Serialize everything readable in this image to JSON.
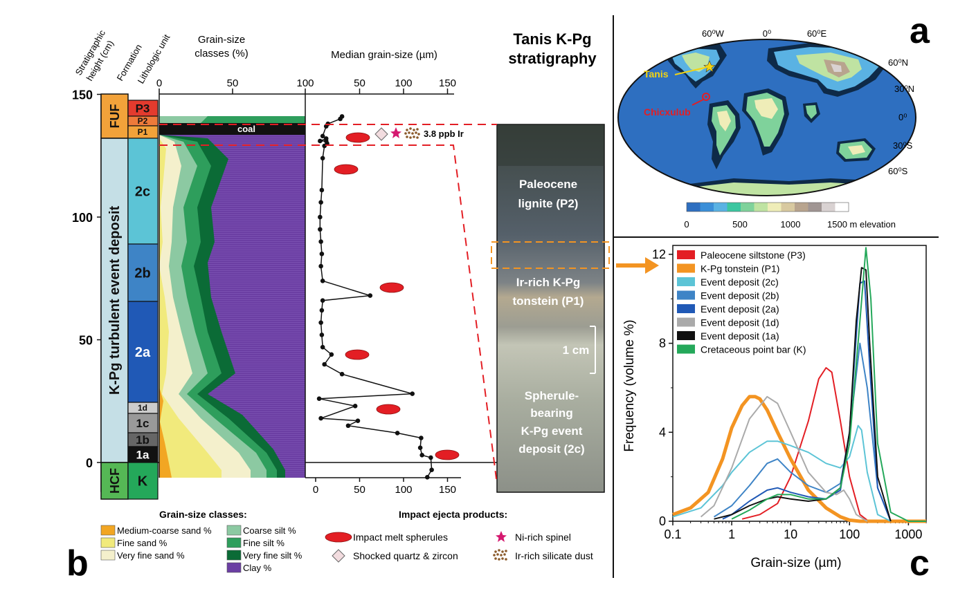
{
  "panel_letters": {
    "a": "a",
    "b": "b",
    "c": "c"
  },
  "panel_b": {
    "col_headers": {
      "height": "Stratigraphic height (cm)",
      "formation": "Formation",
      "unit": "Lithologic unit"
    },
    "grain_header": "Grain-size classes (%)",
    "median_header": "Median grain-size (µm)",
    "title_line1": "Tanis K-Pg",
    "title_line2": "stratigraphy",
    "height_ticks": [
      "150",
      "100",
      "50",
      "0"
    ],
    "grain_ticks_top": [
      "0",
      "50",
      "100"
    ],
    "median_ticks_top": [
      "50",
      "100",
      "150"
    ],
    "median_ticks_bottom": [
      "0",
      "50",
      "100",
      "150"
    ],
    "formations": [
      {
        "label": "FUF",
        "color": "#F2A23A",
        "text_color": "#111111"
      },
      {
        "label": "K-Pg turbulent event deposit",
        "color": "#C5DFE6",
        "text_color": "#111111"
      },
      {
        "label": "HCF",
        "color": "#55B855",
        "text_color": "#111111"
      }
    ],
    "units": [
      {
        "label": "P3",
        "color": "#E33B2E",
        "text_color": "#111111"
      },
      {
        "label": "P2",
        "color": "#EE7A3A",
        "text_color": "#111111"
      },
      {
        "label": "P1",
        "color": "#F2A23A",
        "text_color": "#111111"
      },
      {
        "label": "2c",
        "color": "#5CC4D6",
        "text_color": "#111111"
      },
      {
        "label": "2b",
        "color": "#3E84C6",
        "text_color": "#111111"
      },
      {
        "label": "2a",
        "color": "#2059B6",
        "text_color": "#FFFFFF"
      },
      {
        "label": "1d",
        "color": "#CCCCCC",
        "text_color": "#111111"
      },
      {
        "label": "1c",
        "color": "#999999",
        "text_color": "#111111"
      },
      {
        "label": "1b",
        "color": "#666666",
        "text_color": "#111111"
      },
      {
        "label": "1a",
        "color": "#111111",
        "text_color": "#FFFFFF"
      },
      {
        "label": "K",
        "color": "#24A85A",
        "text_color": "#111111"
      }
    ],
    "coal_label": "coal",
    "ir_label": "3.8 ppb Ir",
    "photo_labels": [
      "Paleocene",
      "lignite (P2)",
      "Ir-rich K-Pg",
      "tonstein (P1)",
      "1 cm",
      "Spherule-",
      "bearing",
      "K-Pg event",
      "deposit (2c)"
    ],
    "median_profile": {
      "height_cm": [
        141,
        140,
        138,
        137,
        133,
        132,
        131,
        131,
        130,
        129,
        124,
        111,
        106,
        100,
        95,
        90,
        85,
        80,
        74,
        68,
        66,
        62,
        57,
        52,
        47,
        44,
        40,
        36,
        28,
        26,
        23,
        18,
        17,
        15,
        12,
        10,
        6,
        3,
        2,
        -3,
        -6
      ],
      "median_um": [
        30,
        28,
        14,
        12,
        8,
        12,
        5,
        12,
        13,
        10,
        8,
        7,
        6,
        5,
        5,
        6,
        7,
        6,
        8,
        62,
        8,
        7,
        6,
        7,
        8,
        18,
        10,
        30,
        110,
        4,
        45,
        6,
        48,
        37,
        93,
        120,
        119,
        121,
        131,
        132,
        127
      ]
    },
    "legend_grain": {
      "title": "Grain-size classes:",
      "items": [
        {
          "label": "Medium-coarse sand %",
          "color": "#F2A623"
        },
        {
          "label": "Fine sand %",
          "color": "#F1EA7C"
        },
        {
          "label": "Very fine sand %",
          "color": "#F4F0CC"
        },
        {
          "label": "Coarse silt %",
          "color": "#8CC9A2"
        },
        {
          "label": "Fine silt %",
          "color": "#2E9E5C"
        },
        {
          "label": "Very fine silt %",
          "color": "#0B6B36"
        },
        {
          "label": "Clay %",
          "color": "#6B3EA3"
        }
      ]
    },
    "legend_impact": {
      "title": "Impact ejecta products:",
      "items": [
        {
          "label": "Impact melt spherules",
          "icon": "red-ellipse-icon",
          "color": "#E31E24"
        },
        {
          "label": "Ni-rich spinel",
          "icon": "star-icon",
          "color": "#D5186F"
        },
        {
          "label": "Shocked quartz & zircon",
          "icon": "diamond-icon",
          "color": "#F2DCDF"
        },
        {
          "label": "Ir-rich silicate dust",
          "icon": "dots-icon",
          "color": "#8B5A2B"
        }
      ]
    }
  },
  "panel_a": {
    "lon_labels": [
      "60⁰W",
      "0⁰",
      "60⁰E"
    ],
    "lat_labels": [
      "60⁰N",
      "30⁰N",
      "0⁰",
      "30⁰S",
      "60⁰S"
    ],
    "sites": [
      {
        "label": "Tanis",
        "color": "#F2D312",
        "icon": "star-icon"
      },
      {
        "label": "Chicxulub",
        "color": "#E31E24",
        "icon": "target-icon"
      }
    ],
    "colorbar": {
      "labels": [
        "0",
        "500",
        "1000",
        "1500 m elevation"
      ],
      "colors": [
        "#2E6FC0",
        "#3B8FD8",
        "#5AB2E3",
        "#3CC6A0",
        "#7FD29B",
        "#BFE3A2",
        "#EFEDB8",
        "#D8C9A0",
        "#B8A48E",
        "#A09593",
        "#D9D2D2",
        "#FFFFFF"
      ]
    }
  },
  "chart_data": {
    "type": "line",
    "xlabel": "Grain-size (µm)",
    "ylabel": "Frequency (volume %)",
    "x_scale": "log",
    "xlim": [
      0.1,
      2000
    ],
    "ylim": [
      0,
      12.4
    ],
    "x_ticks": [
      "0.1",
      "1",
      "10",
      "100",
      "1000"
    ],
    "y_ticks": [
      "0",
      "4",
      "8",
      "12"
    ],
    "legend_position": "top-left",
    "series": [
      {
        "name": "Paleocene siltstone (P3)",
        "color": "#E31E24",
        "width": 2,
        "x": [
          1.5,
          3,
          6,
          10,
          20,
          30,
          40,
          50,
          70,
          100,
          150,
          200,
          300
        ],
        "y": [
          0.1,
          0.3,
          0.8,
          2,
          4.5,
          6.4,
          6.9,
          6.7,
          4.5,
          2,
          0.3,
          0.05,
          0
        ]
      },
      {
        "name": "K-Pg tonstein (P1)",
        "color": "#F39422",
        "width": 5,
        "x": [
          0.1,
          0.2,
          0.4,
          0.7,
          1,
          1.5,
          2,
          2.5,
          3,
          4,
          6,
          10,
          20,
          40,
          70,
          100,
          150,
          200,
          300,
          500,
          2000
        ],
        "y": [
          0.3,
          0.6,
          1.3,
          2.8,
          4.2,
          5.2,
          5.6,
          5.6,
          5.5,
          5,
          4,
          2.8,
          1.4,
          0.6,
          0.2,
          0.05,
          0,
          0,
          0,
          0,
          0
        ]
      },
      {
        "name": "Event deposit (2c)",
        "color": "#5CC4D6",
        "width": 2,
        "x": [
          0.1,
          0.3,
          0.7,
          1,
          2,
          4,
          6,
          10,
          20,
          40,
          70,
          100,
          140,
          160,
          200,
          300,
          500
        ],
        "y": [
          0.2,
          0.6,
          1.6,
          2.2,
          3.1,
          3.6,
          3.6,
          3.4,
          3.1,
          2.6,
          2.4,
          2.9,
          4.3,
          4.1,
          2.2,
          0.3,
          0
        ]
      },
      {
        "name": "Event deposit (2b)",
        "color": "#3E84C6",
        "width": 2,
        "x": [
          0.5,
          1,
          2,
          4,
          6,
          10,
          20,
          40,
          70,
          100,
          150,
          200,
          300,
          500
        ],
        "y": [
          0.2,
          0.7,
          1.6,
          2.6,
          2.8,
          2.2,
          1.6,
          1.3,
          1.7,
          4,
          8,
          6,
          1.5,
          0
        ]
      },
      {
        "name": "Event deposit (2a)",
        "color": "#2059B6",
        "width": 2,
        "x": [
          0.7,
          1,
          2,
          4,
          6,
          10,
          20,
          40,
          70,
          100,
          150,
          180,
          220,
          300,
          500
        ],
        "y": [
          0.1,
          0.3,
          0.9,
          1.4,
          1.5,
          1.3,
          1.1,
          1,
          1.4,
          4,
          10.7,
          10.8,
          7,
          1.5,
          0
        ]
      },
      {
        "name": "Event deposit (1d)",
        "color": "#AAAAAA",
        "width": 2,
        "x": [
          0.3,
          0.5,
          1,
          2,
          4,
          6,
          10,
          20,
          40,
          60,
          80,
          100,
          130,
          200
        ],
        "y": [
          0.2,
          0.7,
          2.4,
          4.6,
          5.6,
          5.3,
          4,
          2.2,
          1.3,
          1.2,
          1.4,
          1,
          0.3,
          0
        ]
      },
      {
        "name": "Event deposit (1a)",
        "color": "#111111",
        "width": 2,
        "x": [
          0.5,
          1,
          2,
          4,
          6,
          10,
          20,
          40,
          70,
          100,
          130,
          160,
          190,
          220,
          300,
          500
        ],
        "y": [
          0.1,
          0.3,
          0.7,
          1,
          1.1,
          1,
          0.9,
          1,
          1.5,
          4,
          9,
          11.4,
          11.3,
          8,
          2,
          0
        ]
      },
      {
        "name": "Cretaceous point bar (K)",
        "color": "#24A85A",
        "width": 2,
        "x": [
          1,
          2,
          4,
          6,
          10,
          20,
          40,
          70,
          100,
          150,
          190,
          230,
          300,
          500,
          1000,
          2000
        ],
        "y": [
          0.1,
          0.5,
          1,
          1.2,
          1.2,
          1,
          1,
          1.5,
          3.5,
          9,
          12.3,
          10,
          3.5,
          0.4,
          0,
          0
        ]
      }
    ]
  }
}
